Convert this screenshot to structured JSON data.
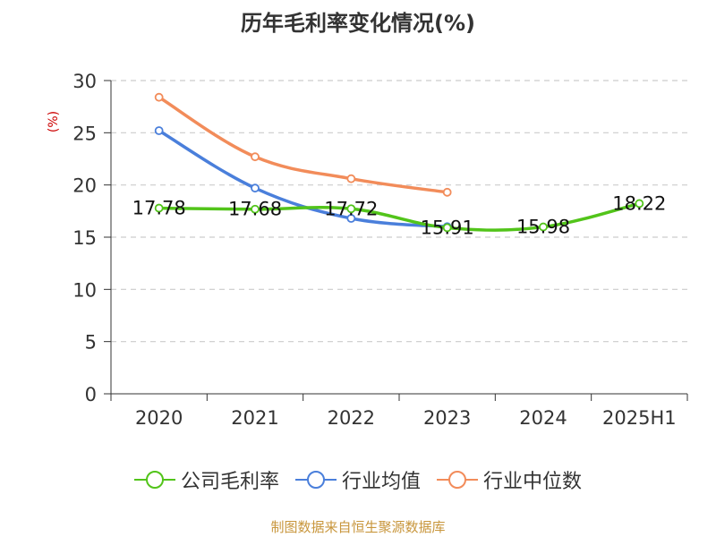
{
  "chart_data": {
    "type": "line",
    "title": "历年毛利率变化情况(%)",
    "ylabel": "(%)",
    "categories": [
      "2020",
      "2021",
      "2022",
      "2023",
      "2024",
      "2025H1"
    ],
    "ylim": [
      0,
      30
    ],
    "yticks": [
      0,
      5,
      10,
      15,
      20,
      25,
      30
    ],
    "grid": true,
    "legend_position": "bottom",
    "series": [
      {
        "name": "公司毛利率",
        "color": "#52c41a",
        "values": [
          17.78,
          17.68,
          17.72,
          15.91,
          15.98,
          18.22
        ],
        "labels": [
          "17.78",
          "17.68",
          "17.72",
          "15.91",
          "15.98",
          "18.22"
        ]
      },
      {
        "name": "行业均值",
        "color": "#4a7fdb",
        "values": [
          25.2,
          19.7,
          16.8,
          16.0,
          null,
          null
        ]
      },
      {
        "name": "行业中位数",
        "color": "#f28c5a",
        "values": [
          28.4,
          22.7,
          20.6,
          19.3,
          null,
          null
        ]
      }
    ]
  },
  "source": "制图数据来自恒生聚源数据库"
}
